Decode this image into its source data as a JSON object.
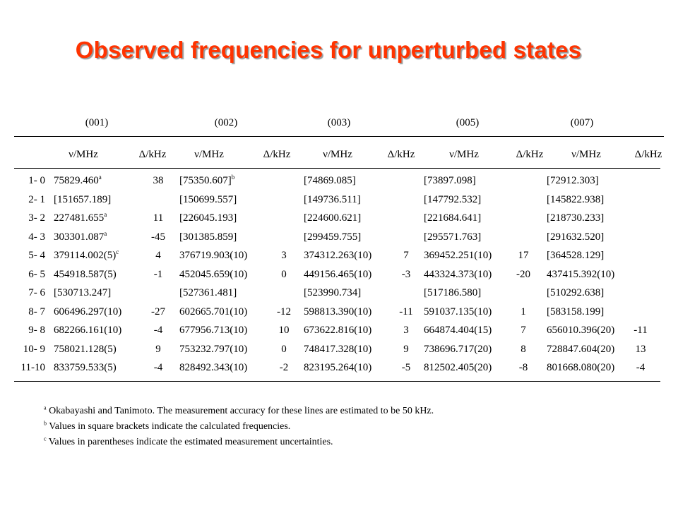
{
  "title": "Observed frequencies for unperturbed states",
  "table": {
    "groups": [
      "(001)",
      "(002)",
      "(003)",
      "(005)",
      "(007)"
    ],
    "col_headers": [
      [
        "ν/MHz",
        "Δ/kHz"
      ],
      [
        "ν/MHz",
        "Δ/kHz"
      ],
      [
        "ν/MHz",
        "Δ/kHz"
      ],
      [
        "ν/MHz",
        "Δ/kHz"
      ],
      [
        "ν/MHz",
        "Δ/kHz"
      ]
    ],
    "rows": [
      {
        "label": "1- 0",
        "cells": [
          [
            "75829.460",
            "a",
            "38"
          ],
          [
            "[75350.607]",
            "b",
            ""
          ],
          [
            "[74869.085]",
            "",
            ""
          ],
          [
            "[73897.098]",
            "",
            ""
          ],
          [
            "[72912.303]",
            "",
            ""
          ]
        ]
      },
      {
        "label": "2- 1",
        "cells": [
          [
            "[151657.189]",
            "",
            ""
          ],
          [
            "[150699.557]",
            "",
            ""
          ],
          [
            "[149736.511]",
            "",
            ""
          ],
          [
            "[147792.532]",
            "",
            ""
          ],
          [
            "[145822.938]",
            "",
            ""
          ]
        ]
      },
      {
        "label": "3- 2",
        "cells": [
          [
            "227481.655",
            "a",
            "11"
          ],
          [
            "[226045.193]",
            "",
            ""
          ],
          [
            "[224600.621]",
            "",
            ""
          ],
          [
            "[221684.641]",
            "",
            ""
          ],
          [
            "[218730.233]",
            "",
            ""
          ]
        ]
      },
      {
        "label": "4- 3",
        "cells": [
          [
            "303301.087",
            "a",
            "-45"
          ],
          [
            "[301385.859]",
            "",
            ""
          ],
          [
            "[299459.755]",
            "",
            ""
          ],
          [
            "[295571.763]",
            "",
            ""
          ],
          [
            "[291632.520]",
            "",
            ""
          ]
        ]
      },
      {
        "label": "5- 4",
        "cells": [
          [
            "379114.002(5)",
            "c",
            "4"
          ],
          [
            "376719.903(10)",
            "",
            "3"
          ],
          [
            "374312.263(10)",
            "",
            "7"
          ],
          [
            "369452.251(10)",
            "",
            "17"
          ],
          [
            "[364528.129]",
            "",
            ""
          ]
        ]
      },
      {
        "label": "6- 5",
        "cells": [
          [
            "454918.587(5)",
            "",
            "-1"
          ],
          [
            "452045.659(10)",
            "",
            "0"
          ],
          [
            "449156.465(10)",
            "",
            "-3"
          ],
          [
            "443324.373(10)",
            "",
            "-20"
          ],
          [
            "437415.392(10)",
            "",
            ""
          ]
        ]
      },
      {
        "label": "7- 6",
        "cells": [
          [
            "[530713.247]",
            "",
            ""
          ],
          [
            "[527361.481]",
            "",
            ""
          ],
          [
            "[523990.734]",
            "",
            ""
          ],
          [
            "[517186.580]",
            "",
            ""
          ],
          [
            "[510292.638]",
            "",
            ""
          ]
        ]
      },
      {
        "label": "8- 7",
        "cells": [
          [
            "606496.297(10)",
            "",
            "-27"
          ],
          [
            "602665.701(10)",
            "",
            "-12"
          ],
          [
            "598813.390(10)",
            "",
            "-11"
          ],
          [
            "591037.135(10)",
            "",
            "1"
          ],
          [
            "[583158.199]",
            "",
            ""
          ]
        ]
      },
      {
        "label": "9- 8",
        "cells": [
          [
            "682266.161(10)",
            "",
            "-4"
          ],
          [
            "677956.713(10)",
            "",
            "10"
          ],
          [
            "673622.816(10)",
            "",
            "3"
          ],
          [
            "664874.404(15)",
            "",
            "7"
          ],
          [
            "656010.396(20)",
            "",
            "-11"
          ]
        ]
      },
      {
        "label": "10- 9",
        "cells": [
          [
            "758021.128(5)",
            "",
            "9"
          ],
          [
            "753232.797(10)",
            "",
            "0"
          ],
          [
            "748417.328(10)",
            "",
            "9"
          ],
          [
            "738696.717(20)",
            "",
            "8"
          ],
          [
            "728847.604(20)",
            "",
            "13"
          ]
        ]
      },
      {
        "label": "11-10",
        "cells": [
          [
            "833759.533(5)",
            "",
            "-4"
          ],
          [
            "828492.343(10)",
            "",
            "-2"
          ],
          [
            "823195.264(10)",
            "",
            "-5"
          ],
          [
            "812502.405(20)",
            "",
            "-8"
          ],
          [
            "801668.080(20)",
            "",
            "-4"
          ]
        ]
      }
    ]
  },
  "footnotes": [
    {
      "mark": "a",
      "text": " Okabayashi and Tanimoto.  The measurement accuracy for these lines are estimated to be 50 kHz."
    },
    {
      "mark": "b",
      "text": " Values in square brackets indicate the calculated frequencies."
    },
    {
      "mark": "c",
      "text": " Values in parentheses indicate the estimated measurement uncertainties."
    }
  ]
}
